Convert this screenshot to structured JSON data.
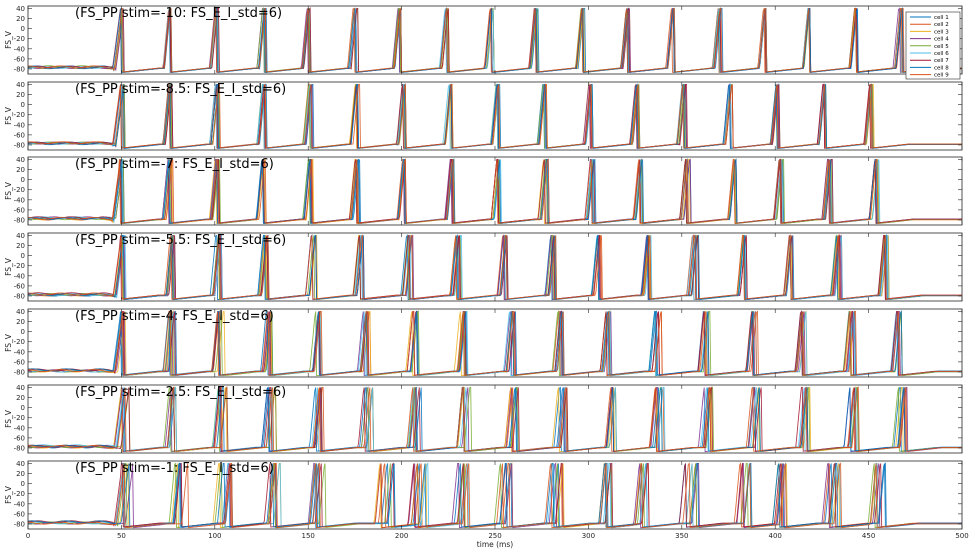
{
  "chart_data": {
    "type": "line",
    "xlabel": "time (ms)",
    "x_ticks": [
      0,
      50,
      100,
      150,
      200,
      250,
      300,
      350,
      400,
      450,
      500
    ],
    "xlim": [
      0,
      500
    ],
    "legend": {
      "placement": "top-right",
      "entries": [
        "cell 1",
        "cell 2",
        "cell 3",
        "cell 4",
        "cell 5",
        "cell 6",
        "cell 7",
        "cell 8",
        "cell 9"
      ]
    },
    "series_colors": [
      "#0072bd",
      "#d95319",
      "#edb120",
      "#7e2f8e",
      "#77ac30",
      "#4dbeee",
      "#a2142f",
      "#0072bd",
      "#d95319"
    ],
    "grid": false,
    "panels": [
      {
        "title": "(FS_PP stim=-10: FS_E_I_std=6)",
        "ylabel": "FS_V",
        "ylim": [
          -90,
          45
        ],
        "y_ticks": [
          40,
          20,
          0,
          -20,
          -40,
          -60,
          -80
        ],
        "spike_times_ms": [
          50,
          76,
          101,
          126,
          150,
          175,
          199,
          224,
          248,
          272,
          297,
          321,
          345,
          370,
          394,
          418,
          443,
          467
        ],
        "spike_jitter_ms": 1.0
      },
      {
        "title": "(FS_PP stim=-8.5: FS_E_I_std=6)",
        "ylabel": "FS_V",
        "ylim": [
          -90,
          45
        ],
        "y_ticks": [
          40,
          20,
          0,
          -20,
          -40,
          -60,
          -80
        ],
        "spike_times_ms": [
          50,
          76,
          101,
          126,
          151,
          176,
          201,
          226,
          251,
          276,
          301,
          326,
          351,
          376,
          401,
          426,
          451
        ],
        "spike_jitter_ms": 1.0
      },
      {
        "title": "(FS_PP stim=-7: FS_E_I_std=6)",
        "ylabel": "FS_V",
        "ylim": [
          -90,
          45
        ],
        "y_ticks": [
          40,
          20,
          0,
          -20,
          -40,
          -60,
          -80
        ],
        "spike_times_ms": [
          50,
          76,
          101,
          126,
          151,
          176,
          201,
          227,
          252,
          277,
          302,
          328,
          353,
          378,
          403,
          429,
          454
        ],
        "spike_jitter_ms": 1.2
      },
      {
        "title": "(FS_PP stim=-5.5: FS_E_I_std=6)",
        "ylabel": "FS_V",
        "ylim": [
          -90,
          45
        ],
        "y_ticks": [
          40,
          20,
          0,
          -20,
          -40,
          -60,
          -80
        ],
        "spike_times_ms": [
          50,
          77,
          102,
          127,
          153,
          178,
          204,
          230,
          255,
          281,
          306,
          332,
          357,
          383,
          408,
          434,
          459
        ],
        "spike_jitter_ms": 1.5
      },
      {
        "title": "(FS_PP stim=-4: FS_E_I_std=6)",
        "ylabel": "FS_V",
        "ylim": [
          -90,
          45
        ],
        "y_ticks": [
          40,
          20,
          0,
          -20,
          -40,
          -60,
          -80
        ],
        "spike_times_ms": [
          51,
          77,
          103,
          129,
          155,
          181,
          207,
          233,
          259,
          285,
          311,
          337,
          363,
          389,
          415,
          441,
          466
        ],
        "spike_jitter_ms": 1.8
      },
      {
        "title": "(FS_PP stim=-2.5: FS_E_I_std=6)",
        "ylabel": "FS_V",
        "ylim": [
          -90,
          45
        ],
        "y_ticks": [
          40,
          20,
          0,
          -20,
          -40,
          -60,
          -80
        ],
        "spike_times_ms": [
          52,
          78,
          104,
          130,
          156,
          182,
          208,
          234,
          260,
          286,
          312,
          338,
          364,
          390,
          416,
          442,
          468
        ],
        "spike_jitter_ms": 2.5
      },
      {
        "title": "(FS_PP stim=-1: FS_E_I_std=6)",
        "ylabel": "FS_V",
        "ylim": [
          -90,
          45
        ],
        "y_ticks": [
          40,
          20,
          0,
          -20,
          -40,
          -60,
          -80
        ],
        "spike_times_ms": [
          53,
          82,
          106,
          131,
          155,
          192,
          210,
          232,
          256,
          283,
          309,
          331,
          355,
          383,
          405,
          432,
          455
        ],
        "spike_jitter_ms": 4.0
      }
    ]
  }
}
